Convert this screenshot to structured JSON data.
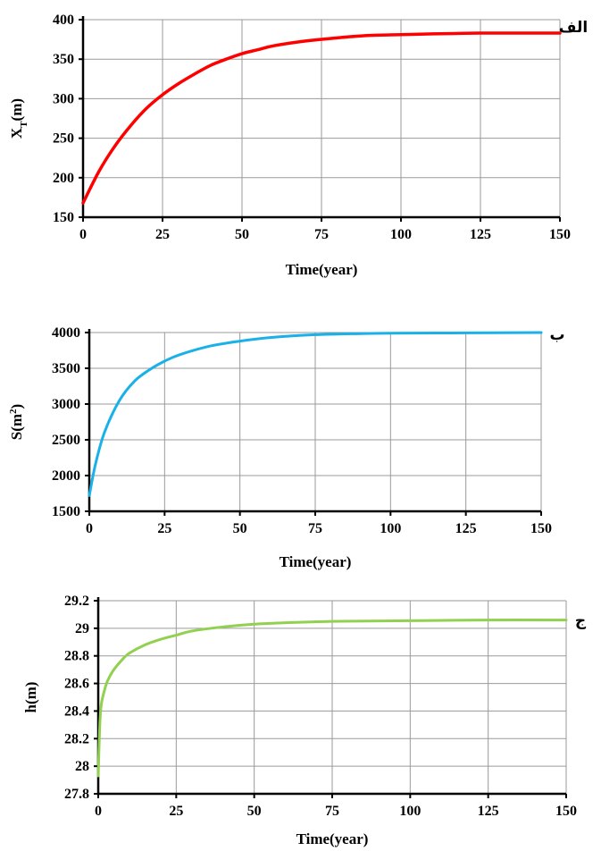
{
  "chart_data": [
    {
      "type": "line",
      "panel_label": "الف",
      "xlabel": "Time(year)",
      "ylabel_main": "X",
      "ylabel_sub": "T",
      "ylabel_tail": "(m)",
      "xlim": [
        0,
        150
      ],
      "ylim": [
        150,
        400
      ],
      "xticks": [
        0,
        25,
        50,
        75,
        100,
        125,
        150
      ],
      "yticks": [
        150,
        200,
        250,
        300,
        350,
        400
      ],
      "grid": true,
      "color": "#ff0000",
      "series": [
        {
          "x": [
            0,
            5,
            10,
            15,
            20,
            25,
            30,
            35,
            40,
            45,
            50,
            55,
            60,
            70,
            80,
            90,
            100,
            110,
            125,
            140,
            150
          ],
          "y": [
            168,
            208,
            240,
            266,
            288,
            305,
            319,
            331,
            342,
            350,
            357,
            362,
            367,
            373,
            377,
            380,
            381,
            382,
            383,
            383,
            383
          ]
        }
      ]
    },
    {
      "type": "line",
      "panel_label": "ب",
      "xlabel": "Time(year)",
      "ylabel_main": "S(m",
      "ylabel_sup": "2",
      "ylabel_tail": ")",
      "xlim": [
        0,
        150
      ],
      "ylim": [
        1500,
        4000
      ],
      "xticks": [
        0,
        25,
        50,
        75,
        100,
        125,
        150
      ],
      "yticks": [
        1500,
        2000,
        2500,
        3000,
        3500,
        4000
      ],
      "grid": true,
      "color": "#1ab0e8",
      "series": [
        {
          "x": [
            0,
            2,
            5,
            10,
            15,
            20,
            25,
            30,
            40,
            50,
            60,
            75,
            90,
            100,
            125,
            150
          ],
          "y": [
            1720,
            2150,
            2600,
            3050,
            3320,
            3480,
            3600,
            3690,
            3810,
            3880,
            3930,
            3970,
            3985,
            3990,
            3995,
            4000
          ]
        }
      ]
    },
    {
      "type": "line",
      "panel_label": "ج",
      "xlabel": "Time(year)",
      "ylabel_main": "h(m)",
      "xlim": [
        0,
        150
      ],
      "ylim": [
        27.8,
        29.2
      ],
      "xticks": [
        0,
        25,
        50,
        75,
        100,
        125,
        150
      ],
      "yticks": [
        27.8,
        28,
        28.2,
        28.4,
        28.6,
        28.8,
        29,
        29.2
      ],
      "ytick_labels": [
        "27.8",
        "28",
        "28.2",
        "28.4",
        "28.6",
        "28.8",
        "29",
        "29.2"
      ],
      "grid": true,
      "color": "#92d050",
      "series": [
        {
          "x": [
            0,
            0.5,
            1,
            2,
            3,
            5,
            8,
            10,
            15,
            20,
            25,
            30,
            40,
            50,
            60,
            75,
            100,
            125,
            150
          ],
          "y": [
            27.93,
            28.3,
            28.45,
            28.55,
            28.62,
            28.7,
            28.78,
            28.82,
            28.88,
            28.92,
            28.95,
            28.98,
            29.01,
            29.03,
            29.04,
            29.05,
            29.055,
            29.06,
            29.06
          ]
        }
      ]
    }
  ]
}
